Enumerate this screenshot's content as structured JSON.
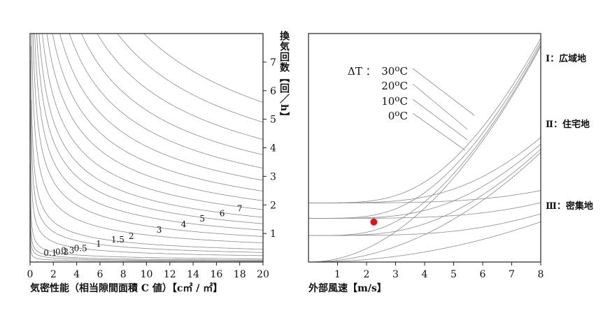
{
  "chart_data": [
    {
      "type": "line",
      "xlabel": "気密性能（相当隙間面積 C 値）【c㎡ / ㎡】",
      "ylabel": "換気回数【回／h】",
      "xlim": [
        0,
        20
      ],
      "ylim": [
        0,
        8
      ],
      "x_ticks": [
        "0",
        "2",
        "4",
        "6",
        "8",
        "10",
        "12",
        "14",
        "16",
        "18",
        "20"
      ],
      "y_ticks": [
        "1",
        "2",
        "3",
        "4",
        "5",
        "6",
        "7"
      ],
      "x_tick_values": [
        0,
        2,
        4,
        6,
        8,
        10,
        12,
        14,
        16,
        18,
        20
      ],
      "y_tick_values": [
        1,
        2,
        3,
        4,
        5,
        6,
        7
      ],
      "curve_labels": [
        "0.1",
        "0.2",
        "0.3",
        "0.5",
        "1",
        "1.5",
        "2",
        "3",
        "4",
        "5",
        "6",
        "7"
      ],
      "series": [
        {
          "name": "0.1",
          "k": 0.1
        },
        {
          "name": "0.2",
          "k": 0.2
        },
        {
          "name": "0.3",
          "k": 0.3
        },
        {
          "name": "0.5",
          "k": 0.5
        },
        {
          "name": "1",
          "k": 1
        },
        {
          "name": "1.5",
          "k": 1.5
        },
        {
          "name": "2",
          "k": 2
        },
        {
          "name": "3",
          "k": 3
        },
        {
          "name": "4",
          "k": 4
        },
        {
          "name": "5",
          "k": 5
        },
        {
          "name": "6",
          "k": 6
        },
        {
          "name": "7",
          "k": 7
        },
        {
          "k": 8.2
        },
        {
          "k": 9.6
        },
        {
          "k": 11.1
        },
        {
          "k": 12.8
        },
        {
          "k": 14.7
        },
        {
          "k": 16.8
        },
        {
          "k": 19.2
        },
        {
          "k": 21.9
        },
        {
          "k": 25.0
        }
      ],
      "relation": "ach = k / sqrt(C)"
    },
    {
      "type": "line",
      "xlabel": "外部風速【m/s】",
      "xlim": [
        0,
        8
      ],
      "ylim": [
        0,
        8
      ],
      "x_ticks": [
        "1",
        "2",
        "3",
        "4",
        "5",
        "6",
        "7",
        "8"
      ],
      "x_tick_values": [
        1,
        2,
        3,
        4,
        5,
        6,
        7,
        8
      ],
      "legend_title": "ΔT ：",
      "temperature_labels": [
        "30",
        "20",
        "10",
        "0"
      ],
      "temperature_unit": "oC",
      "zones": [
        "Ⅰ：広域地",
        "Ⅱ：住宅地",
        "Ⅲ：密集地"
      ],
      "series": [
        {
          "zone": "Ⅰ",
          "dT": 0,
          "coef": 0.118
        },
        {
          "zone": "Ⅰ",
          "dT": 10,
          "coef": 0.118
        },
        {
          "zone": "Ⅰ",
          "dT": 20,
          "coef": 0.118
        },
        {
          "zone": "Ⅰ",
          "dT": 30,
          "coef": 0.118
        },
        {
          "zone": "Ⅱ",
          "dT": 0,
          "coef": 0.06
        },
        {
          "zone": "Ⅱ",
          "dT": 10,
          "coef": 0.06
        },
        {
          "zone": "Ⅱ",
          "dT": 20,
          "coef": 0.06
        },
        {
          "zone": "Ⅱ",
          "dT": 30,
          "coef": 0.06
        },
        {
          "zone": "Ⅲ",
          "dT": 0,
          "coef": 0.022
        },
        {
          "zone": "Ⅲ",
          "dT": 10,
          "coef": 0.022
        },
        {
          "zone": "Ⅲ",
          "dT": 20,
          "coef": 0.022
        },
        {
          "zone": "Ⅲ",
          "dT": 30,
          "coef": 0.022
        }
      ],
      "highlight_point": {
        "x": 2.25,
        "y": 1.4,
        "color": "#e0141e"
      }
    }
  ]
}
